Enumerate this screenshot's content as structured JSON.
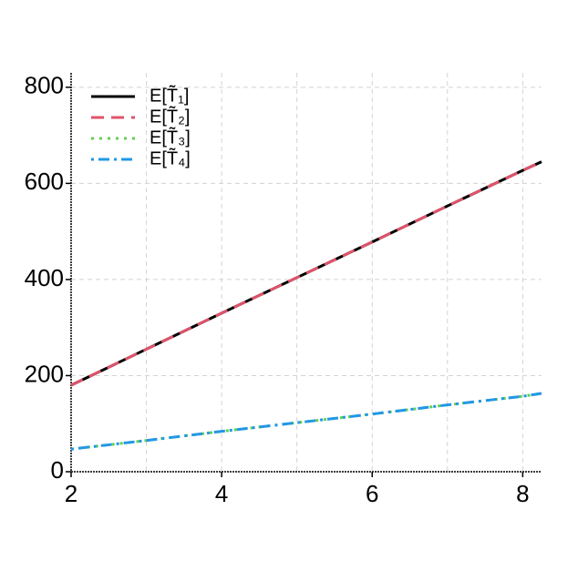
{
  "chart_data": {
    "type": "line",
    "x": [
      2,
      3,
      4,
      5,
      6,
      7,
      8,
      8.25
    ],
    "series": [
      {
        "name": "E[T̃₁]",
        "color": "#000000",
        "dash": "solid",
        "values": [
          180,
          255,
          330,
          404,
          478,
          553,
          627,
          645
        ]
      },
      {
        "name": "E[T̃₂]",
        "color": "#DF536B",
        "dash": "dashed",
        "values": [
          180,
          255,
          330,
          404,
          478,
          553,
          627,
          645
        ]
      },
      {
        "name": "E[T̃₃]",
        "color": "#61D04F",
        "dash": "dotted",
        "values": [
          47,
          65,
          84,
          102,
          120,
          139,
          157,
          163
        ]
      },
      {
        "name": "E[T̃₄]",
        "color": "#2297E6",
        "dash": "dotdash",
        "values": [
          47,
          65,
          84,
          102,
          120,
          139,
          157,
          163
        ]
      }
    ],
    "xlim": [
      2,
      8.25
    ],
    "ylim": [
      0,
      830
    ],
    "xticks": [
      2,
      4,
      6,
      8
    ],
    "yticks": [
      0,
      200,
      400,
      600,
      800
    ],
    "xminor_grid": [
      3,
      5,
      7
    ],
    "grid": true,
    "legend": "top-left"
  }
}
